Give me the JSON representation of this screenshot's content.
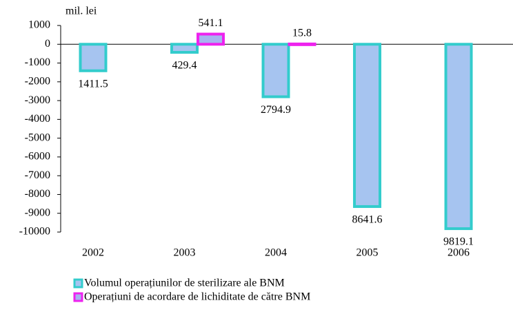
{
  "chart_data": {
    "type": "bar",
    "y_label": "mil. lei",
    "categories": [
      "2002",
      "2003",
      "2004",
      "2005",
      "2006"
    ],
    "series": [
      {
        "name": "Volumul operațiunilor de sterilizare ale BNM",
        "color": "#a6c4f0",
        "border": "#33cccc",
        "values": [
          -1411.5,
          -429.4,
          -2794.9,
          -8641.6,
          -9819.1
        ],
        "value_labels": [
          "1411.5",
          "429.4",
          "2794.9",
          "8641.6",
          "9819.1"
        ]
      },
      {
        "name": "Operațiuni de acordare de lichiditate de către BNM",
        "color": "#a6b4f0",
        "border": "#ee22ee",
        "values": [
          null,
          541.1,
          15.8,
          null,
          null
        ],
        "value_labels": [
          null,
          "541.1",
          "15.8",
          null,
          null
        ]
      }
    ],
    "ylim": [
      -10000,
      1000
    ],
    "yticks": [
      1000,
      0,
      -1000,
      -2000,
      -3000,
      -4000,
      -5000,
      -6000,
      -7000,
      -8000,
      -9000,
      -10000
    ],
    "grid": false
  }
}
